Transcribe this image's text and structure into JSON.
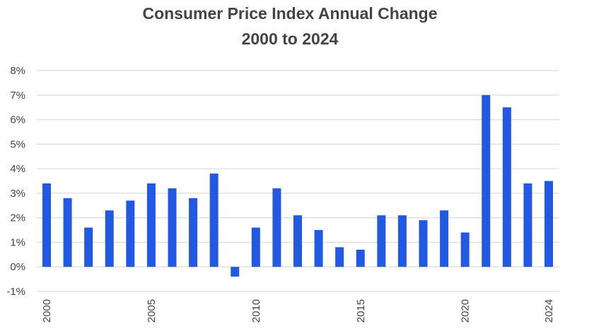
{
  "chart_data": {
    "type": "bar",
    "title": "Consumer Price Index Annual Change",
    "subtitle": "2000 to 2024",
    "xlabel": "",
    "ylabel": "",
    "categories": [
      "2000",
      "2001",
      "2002",
      "2003",
      "2004",
      "2005",
      "2006",
      "2007",
      "2008",
      "2009",
      "2010",
      "2011",
      "2012",
      "2013",
      "2014",
      "2015",
      "2016",
      "2017",
      "2018",
      "2019",
      "2020",
      "2021",
      "2022",
      "2023",
      "2024"
    ],
    "values": [
      3.4,
      2.8,
      1.6,
      2.3,
      2.7,
      3.4,
      3.2,
      2.8,
      3.8,
      -0.4,
      1.6,
      3.2,
      2.1,
      1.5,
      0.8,
      0.7,
      2.1,
      2.1,
      1.9,
      2.3,
      1.4,
      7.0,
      6.5,
      3.4,
      3.5
    ],
    "ylim": [
      -1,
      8
    ],
    "yticks": [
      "-1%",
      "0%",
      "1%",
      "2%",
      "3%",
      "4%",
      "5%",
      "6%",
      "7%",
      "8%"
    ],
    "xtick_labels": [
      "2000",
      "2005",
      "2010",
      "2015",
      "2020",
      "2024"
    ],
    "grid": true,
    "legend": "none",
    "bar_color": "#2259e3",
    "grid_color": "#dddddd"
  }
}
